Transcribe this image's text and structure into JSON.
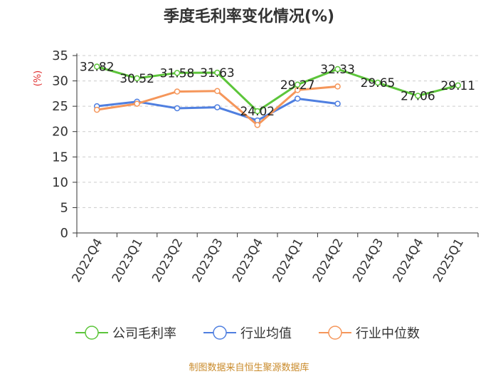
{
  "chart_data": {
    "type": "line",
    "title": "季度毛利率变化情况(%)",
    "ylabel": "(%)",
    "ylim": [
      0,
      35
    ],
    "yticks": [
      0,
      5,
      10,
      15,
      20,
      25,
      30,
      35
    ],
    "grid": true,
    "legend_position": "bottom",
    "categories": [
      "2022Q4",
      "2023Q1",
      "2023Q2",
      "2023Q3",
      "2023Q4",
      "2024Q1",
      "2024Q2",
      "2024Q3",
      "2024Q4",
      "2025Q1"
    ],
    "series": [
      {
        "name": "公司毛利率",
        "color": "#5cc53a",
        "labeled": true,
        "values": [
          32.82,
          30.52,
          31.58,
          31.63,
          24.02,
          29.27,
          32.33,
          29.65,
          27.06,
          29.11
        ],
        "labels": [
          "32.82",
          "30.52",
          "31.58",
          "31.63",
          "24.02",
          "29.27",
          "32.33",
          "29.65",
          "27.06",
          "29.11"
        ]
      },
      {
        "name": "行业均值",
        "color": "#4f7fe0",
        "labeled": false,
        "values": [
          25.0,
          25.9,
          24.6,
          24.8,
          22.2,
          26.5,
          25.5,
          null,
          null,
          null
        ]
      },
      {
        "name": "行业中位数",
        "color": "#f5965a",
        "labeled": false,
        "values": [
          24.3,
          25.5,
          27.9,
          28.0,
          21.3,
          28.2,
          28.9,
          null,
          null,
          null
        ]
      }
    ],
    "source": "制图数据来自恒生聚源数据库",
    "colors": {
      "ylabel": "#e03030",
      "source": "#c98a2a",
      "axis": "#333333",
      "grid": "#cccccc"
    }
  }
}
